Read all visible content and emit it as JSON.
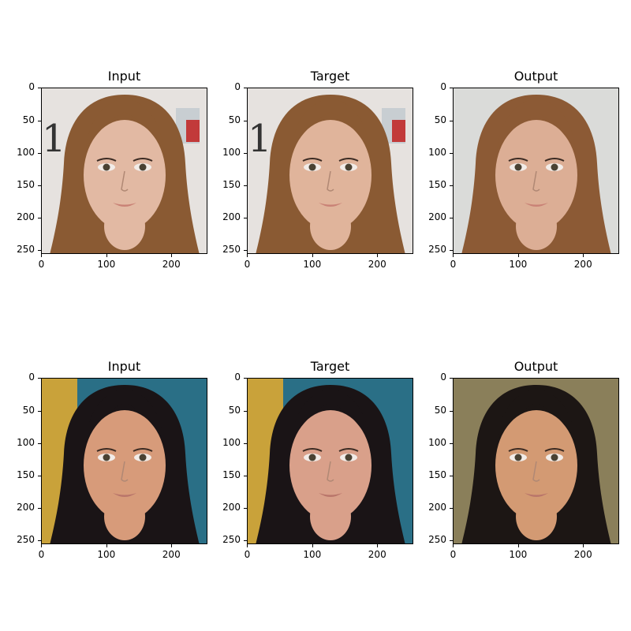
{
  "panels": [
    {
      "id": "r1c1",
      "title": "Input",
      "hair": "#8a5a33",
      "bg": "#e6e2df",
      "skin": "#e2b9a3",
      "bgAccent": "#3a3a3a"
    },
    {
      "id": "r1c2",
      "title": "Target",
      "hair": "#8a5a33",
      "bg": "#e6e2df",
      "skin": "#e0b49b",
      "bgAccent": "#3a3a3a"
    },
    {
      "id": "r1c3",
      "title": "Output",
      "hair": "#8c5a35",
      "bg": "#dadbd9",
      "skin": "#dcae95",
      "bgAccent": "#cfcfcf"
    },
    {
      "id": "r2c1",
      "title": "Input",
      "hair": "#1a1416",
      "bg": "#2a6f86",
      "skin": "#d79b7a",
      "bgAccent": "#c9a23a"
    },
    {
      "id": "r2c2",
      "title": "Target",
      "hair": "#1a1416",
      "bg": "#2a6f86",
      "skin": "#d9a08a",
      "bgAccent": "#c9a23a"
    },
    {
      "id": "r2c3",
      "title": "Output",
      "hair": "#1c1614",
      "bg": "#8a7f5a",
      "skin": "#d39a73",
      "bgAccent": "#9a8a55"
    }
  ],
  "yticks": [
    "0",
    "50",
    "100",
    "150",
    "200",
    "250"
  ],
  "xticks": [
    "0",
    "100",
    "200"
  ]
}
